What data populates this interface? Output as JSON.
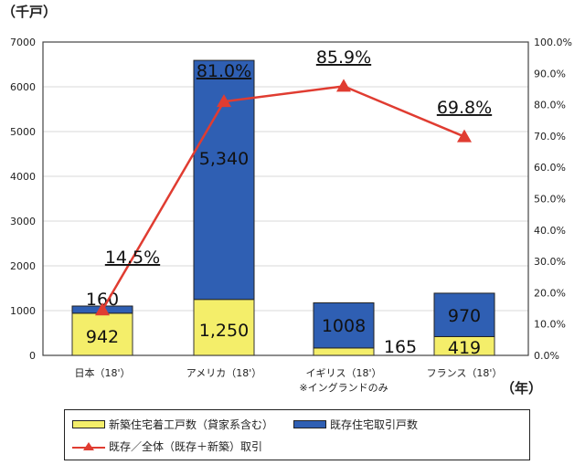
{
  "chart_data": {
    "type": "bar",
    "stacked": true,
    "left_unit": "（千戸）",
    "x_unit": "（年）",
    "categories": [
      "日本（18'）",
      "アメリカ（18'）",
      "イギリス（18'）",
      "フランス（18'）"
    ],
    "category_notes": [
      "",
      "",
      "※イングランドのみ",
      ""
    ],
    "ylim": [
      0,
      7000
    ],
    "yticks": [
      "0",
      "1000",
      "2000",
      "3000",
      "4000",
      "5000",
      "6000",
      "7000"
    ],
    "y2lim": [
      0,
      100
    ],
    "y2ticks": [
      "0.0%",
      "10.0%",
      "20.0%",
      "30.0%",
      "40.0%",
      "50.0%",
      "60.0%",
      "70.0%",
      "80.0%",
      "90.0%",
      "100.0%"
    ],
    "grid": true,
    "legend_position": "bottom",
    "series": [
      {
        "name": "新築住宅着工戸数（貸家系含む）",
        "values": [
          942,
          1250,
          165,
          419
        ],
        "labels": [
          "942",
          "1,250",
          "165",
          "419"
        ],
        "color": "#f4ee6a"
      },
      {
        "name": "既存住宅取引戸数",
        "values": [
          160,
          5340,
          1008,
          970
        ],
        "labels": [
          "160",
          "5,340",
          "1008",
          "970"
        ],
        "color": "#2f5fb3"
      },
      {
        "name": "既存／全体（既存＋新築）取引",
        "axis": "right",
        "type": "line",
        "values": [
          14.5,
          81.0,
          85.9,
          69.8
        ],
        "labels": [
          "14.5%",
          "81.0%",
          "85.9%",
          "69.8%"
        ],
        "color": "#e03c31"
      }
    ]
  }
}
